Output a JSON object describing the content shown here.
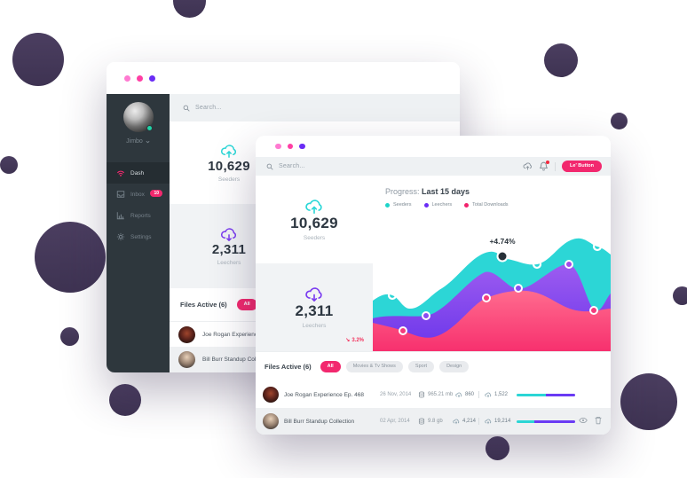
{
  "background": {
    "circle_color": "#46395a"
  },
  "back_window": {
    "traffic_dot_colors": [
      "#ff7ad1",
      "#ff3fa4",
      "#6a2cf5"
    ],
    "sidebar": {
      "user_name": "Jimbo",
      "items": [
        {
          "label": "Dash",
          "icon": "dash-icon",
          "active": true
        },
        {
          "label": "Inbox",
          "icon": "inbox-icon",
          "badge": "10"
        },
        {
          "label": "Reports",
          "icon": "reports-icon"
        },
        {
          "label": "Settings",
          "icon": "settings-icon"
        }
      ]
    },
    "search": {
      "placeholder": "Search..."
    },
    "stats": [
      {
        "value": "10,629",
        "label": "Seeders",
        "icon": "cloud-upload-icon",
        "icon_color": "#2bd7d7"
      },
      {
        "value": "2,311",
        "label": "Leechers",
        "icon": "cloud-download-icon",
        "icon_color": "#7a3bf0"
      }
    ],
    "files_section": {
      "title": "Files Active (6)",
      "filters": [
        {
          "label": "All",
          "active": true
        },
        {
          "label": "Movies & Tv Shows",
          "active": false
        }
      ],
      "rows": [
        {
          "title": "Joe Rogan Experience Ep. 468"
        },
        {
          "title": "Bill Burr Standup Collection"
        }
      ]
    }
  },
  "front_window": {
    "search": {
      "placeholder": "Search..."
    },
    "header_icons": [
      "cloud-upload-icon",
      "bell-icon"
    ],
    "action_button": "Le' Button",
    "stats": [
      {
        "value": "10,629",
        "label": "Seeders",
        "icon": "cloud-upload-icon",
        "icon_color": "#2bd7d7"
      },
      {
        "value": "2,311",
        "label": "Leechers",
        "icon": "cloud-download-icon",
        "icon_color": "#7a3bf0",
        "delta": "3.2%",
        "delta_color": "#f2355f"
      }
    ],
    "progress_title": {
      "prefix": "Progress:",
      "strong": "Last 15 days"
    },
    "files_section": {
      "title": "Files Active (6)",
      "filters": [
        {
          "label": "All",
          "active": true
        },
        {
          "label": "Movies & Tv Shows",
          "active": false
        },
        {
          "label": "Sport",
          "active": false
        },
        {
          "label": "Design",
          "active": false
        }
      ]
    },
    "table": {
      "rows": [
        {
          "title": "Joe Rogan Experience Ep. 468",
          "date": "26 Nov, 2014",
          "size": "965.21 mb",
          "seeds": "860",
          "peers": "1,522",
          "teal_pct": 50,
          "purple_pct": 50
        },
        {
          "title": "Bill Burr Standup Collection",
          "date": "02 Apr, 2014",
          "size": "9.8 gb",
          "seeds": "4,214",
          "peers": "19,214",
          "teal_pct": 30,
          "purple_pct": 70
        }
      ]
    }
  },
  "chart_data": {
    "type": "area",
    "title": "Progress: Last 15 days",
    "annotation": "+4.74%",
    "legend": [
      "Seeders",
      "Leechers",
      "Total Downloads"
    ],
    "legend_colors": [
      "#1ed4c9",
      "#6a2cf5",
      "#f2226c"
    ],
    "legend_position": "top-left",
    "grid": false,
    "x": [
      0,
      1,
      2,
      3,
      4,
      5,
      6,
      7,
      8
    ],
    "ylim": [
      0,
      100
    ],
    "series": [
      {
        "name": "Seeders",
        "color": "#2cd6d6",
        "values": [
          38,
          42,
          32,
          47,
          71,
          66,
          85,
          79,
          73
        ]
      },
      {
        "name": "Leechers",
        "color": "#8a4cf0",
        "values": [
          25,
          27,
          26,
          59,
          47,
          47,
          65,
          31,
          43
        ]
      },
      {
        "name": "Total Downloads",
        "color": "#f43b7d",
        "values": [
          21,
          15,
          11,
          40,
          45,
          41,
          31,
          31,
          32
        ]
      }
    ]
  }
}
